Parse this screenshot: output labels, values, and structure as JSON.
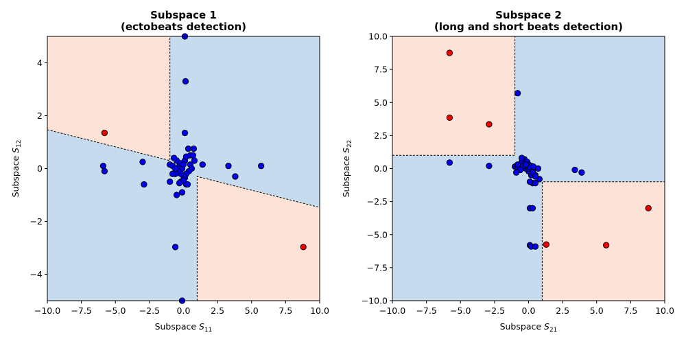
{
  "chart_data": [
    {
      "type": "scatter",
      "title": "Subspace 1",
      "subtitle": "(ectobeats detection)",
      "xlabel_main": "Subspace ",
      "xlabel_var": "S",
      "xlabel_sub": "11",
      "ylabel_main": "Subspace ",
      "ylabel_var": "S",
      "ylabel_sub": "12",
      "xlim": [
        -10,
        10
      ],
      "ylim": [
        -5,
        5
      ],
      "xticks": [
        -10,
        -7.5,
        -5,
        -2.5,
        0,
        2.5,
        5,
        7.5,
        10
      ],
      "xtick_labels": [
        "−10.0",
        "−7.5",
        "−5.0",
        "−2.5",
        "0.0",
        "2.5",
        "5.0",
        "7.5",
        "10.0"
      ],
      "yticks": [
        -4,
        -2,
        0,
        2,
        4
      ],
      "ytick_labels": [
        "−4",
        "−2",
        "0",
        "2",
        "4"
      ],
      "colors": {
        "region_normal": "#c6dcee",
        "region_abnormal": "#fce2d7",
        "point_normal": "#0000ee",
        "point_abnormal": "#ee0000"
      },
      "regions_abnormal": [
        [
          [
            -10,
            1.47
          ],
          [
            -1,
            0.3
          ],
          [
            -1,
            5
          ],
          [
            -10,
            5
          ]
        ],
        [
          [
            1,
            -0.3
          ],
          [
            10,
            -1.47
          ],
          [
            10,
            -5
          ],
          [
            1,
            -5
          ]
        ]
      ],
      "boundary_lines": [
        [
          [
            -10,
            1.47
          ],
          [
            -1,
            0.3
          ],
          [
            -1,
            5
          ]
        ],
        [
          [
            1,
            -5
          ],
          [
            1,
            -0.3
          ],
          [
            10,
            -1.47
          ]
        ]
      ],
      "points_abnormal": [
        [
          -5.8,
          1.35
        ],
        [
          8.8,
          -2.97
        ]
      ],
      "points_normal": [
        [
          0.1,
          5.0
        ],
        [
          0.15,
          3.3
        ],
        [
          0.1,
          1.35
        ],
        [
          -5.9,
          0.1
        ],
        [
          -5.8,
          -0.1
        ],
        [
          -3.0,
          0.25
        ],
        [
          -2.9,
          -0.6
        ],
        [
          3.3,
          0.1
        ],
        [
          3.8,
          -0.3
        ],
        [
          5.7,
          0.1
        ],
        [
          1.4,
          0.15
        ],
        [
          -0.6,
          -2.97
        ],
        [
          -0.1,
          -5.0
        ],
        [
          -1.0,
          0.15
        ],
        [
          -0.8,
          0.1
        ],
        [
          -0.5,
          0.3
        ],
        [
          -0.3,
          0.1
        ],
        [
          -0.2,
          0.2
        ],
        [
          0.1,
          0.3
        ],
        [
          0.2,
          0.45
        ],
        [
          0.5,
          0.5
        ],
        [
          0.7,
          0.5
        ],
        [
          0.35,
          0.75
        ],
        [
          0.75,
          0.75
        ],
        [
          0.8,
          0.3
        ],
        [
          0.5,
          0.15
        ],
        [
          0.6,
          0.0
        ],
        [
          0.4,
          -0.1
        ],
        [
          0.2,
          -0.2
        ],
        [
          0.1,
          -0.35
        ],
        [
          0.0,
          -0.3
        ],
        [
          -0.2,
          -0.2
        ],
        [
          -0.1,
          0.0
        ],
        [
          -0.4,
          -0.1
        ],
        [
          -0.6,
          -0.2
        ],
        [
          -0.8,
          -0.2
        ],
        [
          -1.0,
          -0.5
        ],
        [
          -0.2,
          -0.5
        ],
        [
          0.2,
          -0.6
        ],
        [
          0.0,
          -0.45
        ],
        [
          -0.3,
          -0.55
        ],
        [
          0.3,
          -0.6
        ],
        [
          -0.5,
          -1.0
        ],
        [
          -0.1,
          -0.9
        ],
        [
          -0.7,
          0.4
        ],
        [
          -0.6,
          0.0
        ],
        [
          0.0,
          0.15
        ]
      ]
    },
    {
      "type": "scatter",
      "title": "Subspace 2",
      "subtitle": "(long and short beats detection)",
      "xlabel_main": "Subspace ",
      "xlabel_var": "S",
      "xlabel_sub": "21",
      "ylabel_main": "Subspace ",
      "ylabel_var": "S",
      "ylabel_sub": "22",
      "xlim": [
        -10,
        10
      ],
      "ylim": [
        -10,
        10
      ],
      "xticks": [
        -10,
        -7.5,
        -5,
        -2.5,
        0,
        2.5,
        5,
        7.5,
        10
      ],
      "xtick_labels": [
        "−10.0",
        "−7.5",
        "−5.0",
        "−2.5",
        "0.0",
        "2.5",
        "5.0",
        "7.5",
        "10.0"
      ],
      "yticks": [
        -10,
        -7.5,
        -5,
        -2.5,
        0,
        2.5,
        5,
        7.5,
        10
      ],
      "ytick_labels": [
        "−10.0",
        "−7.5",
        "−5.0",
        "−2.5",
        "0.0",
        "2.5",
        "5.0",
        "7.5",
        "10.0"
      ],
      "colors": {
        "region_normal": "#c6dcee",
        "region_abnormal": "#fce2d7",
        "point_normal": "#0000ee",
        "point_abnormal": "#ee0000"
      },
      "regions_abnormal": [
        [
          [
            -10,
            1
          ],
          [
            -1,
            1
          ],
          [
            -1,
            10
          ],
          [
            -10,
            10
          ]
        ],
        [
          [
            1,
            -1
          ],
          [
            10,
            -1
          ],
          [
            10,
            -10
          ],
          [
            1,
            -10
          ]
        ]
      ],
      "boundary_lines": [
        [
          [
            -10,
            1
          ],
          [
            -1,
            1
          ],
          [
            -1,
            10
          ]
        ],
        [
          [
            1,
            -10
          ],
          [
            1,
            -1
          ],
          [
            10,
            -1
          ]
        ]
      ],
      "points_abnormal": [
        [
          -5.8,
          8.75
        ],
        [
          -5.8,
          3.85
        ],
        [
          -2.9,
          3.35
        ],
        [
          1.3,
          -5.75
        ],
        [
          5.7,
          -5.8
        ],
        [
          8.8,
          -3.0
        ]
      ],
      "points_normal": [
        [
          -0.8,
          5.7
        ],
        [
          -5.8,
          0.45
        ],
        [
          -2.9,
          0.2
        ],
        [
          3.4,
          -0.1
        ],
        [
          3.9,
          -0.3
        ],
        [
          0.1,
          -3.0
        ],
        [
          0.3,
          -3.0
        ],
        [
          0.1,
          -5.8
        ],
        [
          0.2,
          -5.9
        ],
        [
          0.5,
          -5.9
        ],
        [
          -1.0,
          0.15
        ],
        [
          -0.8,
          0.1
        ],
        [
          -0.5,
          0.5
        ],
        [
          -0.3,
          0.7
        ],
        [
          -0.5,
          0.8
        ],
        [
          -0.1,
          0.5
        ],
        [
          0.0,
          0.3
        ],
        [
          0.2,
          0.2
        ],
        [
          0.4,
          0.0
        ],
        [
          0.7,
          0.0
        ],
        [
          0.8,
          -0.8
        ],
        [
          0.5,
          -0.5
        ],
        [
          0.3,
          -1.1
        ],
        [
          0.5,
          -1.1
        ],
        [
          0.1,
          -1.0
        ],
        [
          0.2,
          -0.5
        ],
        [
          0.0,
          -0.2
        ],
        [
          -0.2,
          0.0
        ],
        [
          -0.4,
          0.2
        ],
        [
          -0.6,
          -0.1
        ],
        [
          -0.8,
          0.3
        ],
        [
          -0.9,
          -0.3
        ],
        [
          0.0,
          0.0
        ],
        [
          0.3,
          -0.3
        ],
        [
          0.5,
          -0.6
        ],
        [
          0.1,
          0.1
        ],
        [
          -0.2,
          0.3
        ],
        [
          0.35,
          0.15
        ]
      ]
    }
  ]
}
